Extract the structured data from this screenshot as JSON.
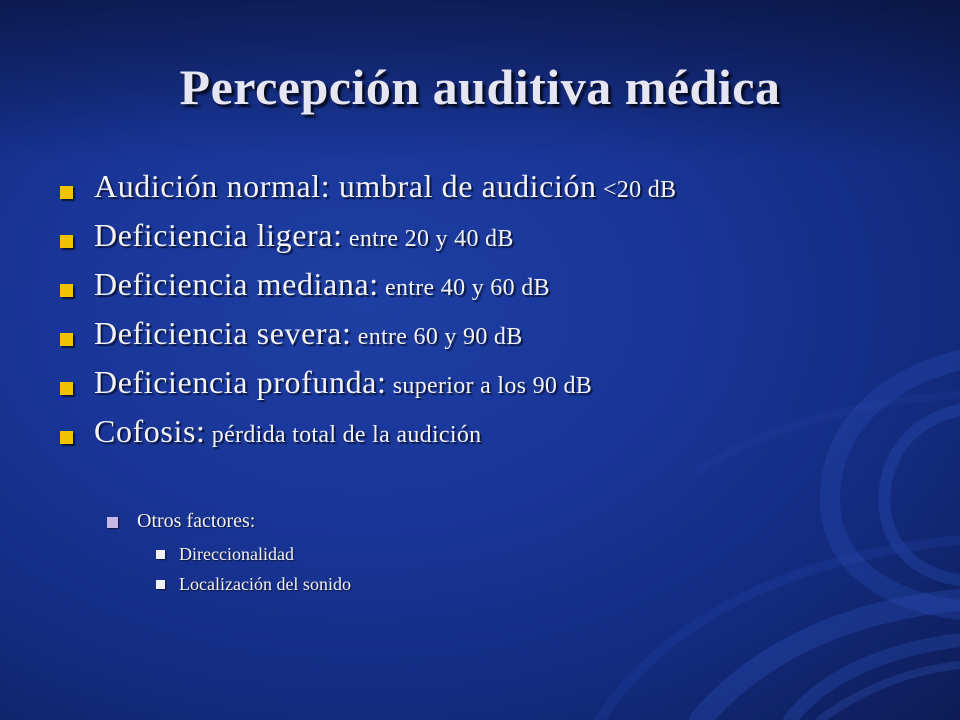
{
  "title": "Percepción auditiva médica",
  "bullets": [
    {
      "term": "Audición normal: umbral de audición",
      "detail": " <20 dB"
    },
    {
      "term": "Deficiencia ligera:",
      "detail": " entre 20 y 40 dB"
    },
    {
      "term": "Deficiencia mediana:",
      "detail": " entre 40 y 60 dB"
    },
    {
      "term": "Deficiencia severa:",
      "detail": " entre 60 y 90 dB"
    },
    {
      "term": "Deficiencia profunda:",
      "detail": " superior a los 90 dB"
    },
    {
      "term": "Cofosis:",
      "detail": " pérdida total de la audición"
    }
  ],
  "sub": {
    "label": "Otros factores:",
    "items": [
      "Direccionalidad",
      "Localización del sonido"
    ]
  },
  "colors": {
    "background": "#193597",
    "bullet_level1": "#f2c200",
    "bullet_level2": "#c9b8e6",
    "bullet_level3": "#f0f0f5",
    "text": "#f2f2f6"
  }
}
